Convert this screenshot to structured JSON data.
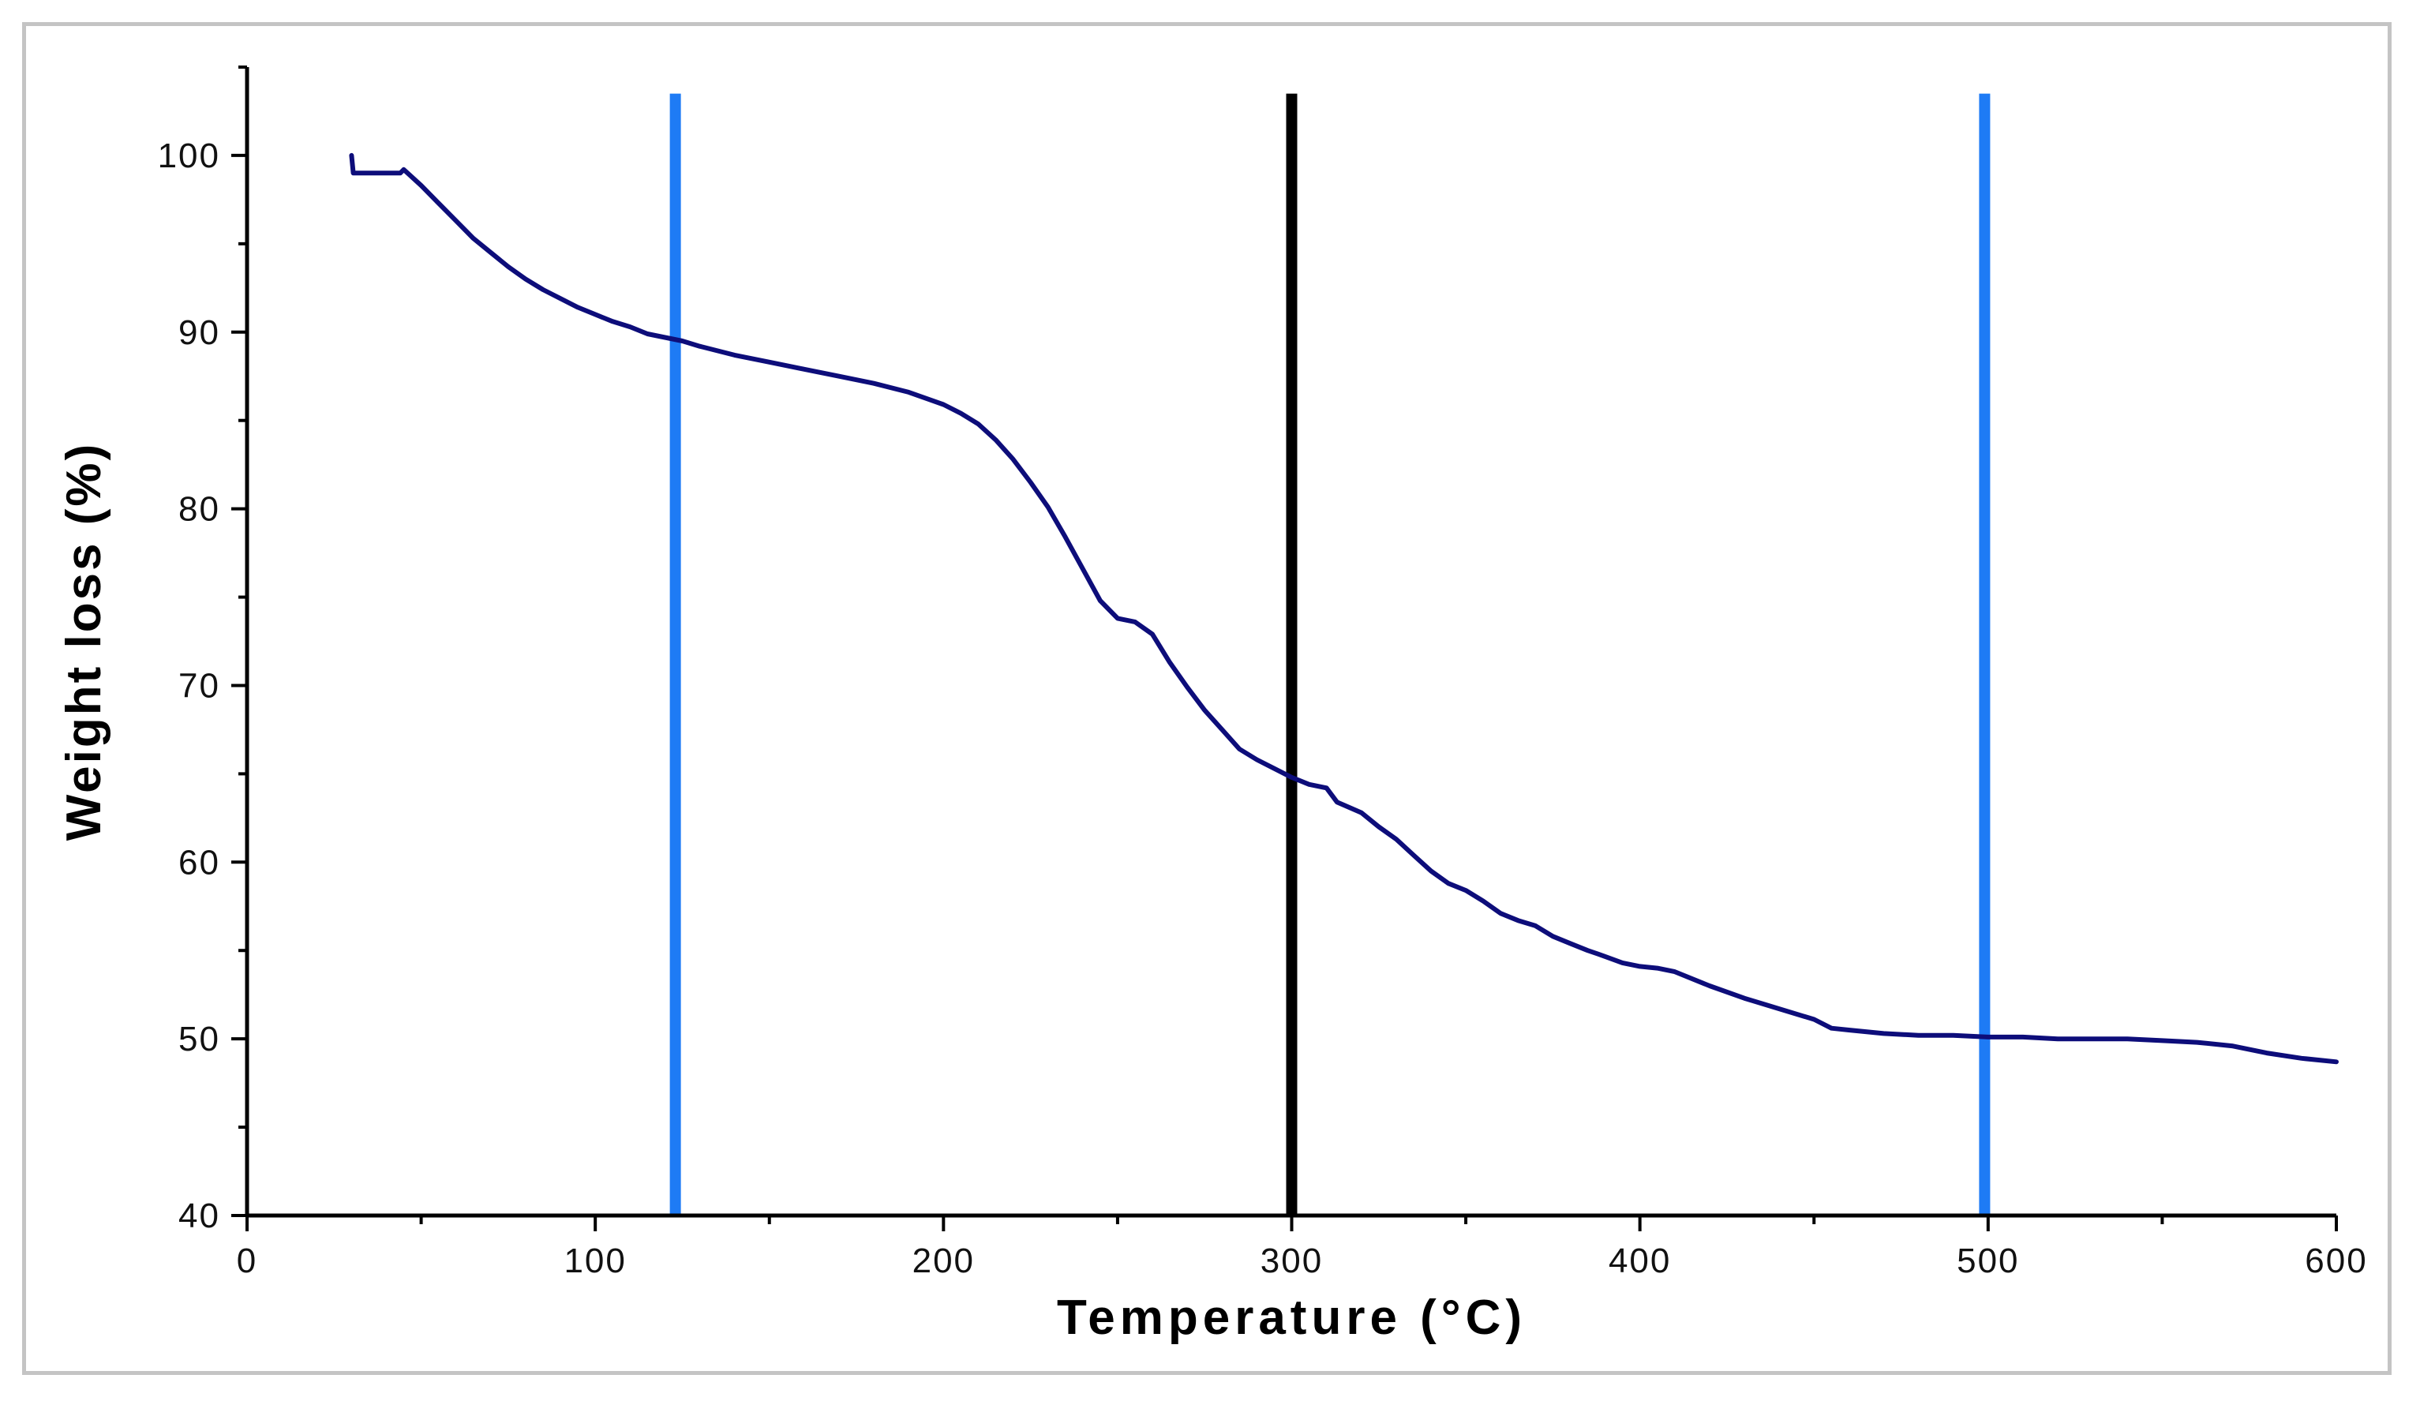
{
  "chart_data": {
    "type": "line",
    "title": "",
    "xlabel": "Temperature (°C)",
    "ylabel": "Weight loss (%)",
    "xlim": [
      0,
      600
    ],
    "ylim": [
      40,
      105
    ],
    "x_ticks": [
      0,
      100,
      200,
      300,
      400,
      500,
      600
    ],
    "y_ticks": [
      40,
      50,
      60,
      70,
      80,
      90,
      100
    ],
    "x_tick_labels": [
      "0",
      "100",
      "200",
      "300",
      "400",
      "500",
      "600"
    ],
    "y_tick_labels": [
      "40",
      "50",
      "60",
      "70",
      "80",
      "90",
      "100"
    ],
    "grid": false,
    "legend": "none",
    "series": [
      {
        "color": "#0d0d7a",
        "x": [
          30,
          30.5,
          31,
          35,
          40,
          44,
          45,
          50,
          55,
          60,
          65,
          70,
          75,
          80,
          85,
          90,
          95,
          100,
          105,
          110,
          115,
          120,
          125,
          130,
          140,
          150,
          160,
          170,
          180,
          190,
          200,
          205,
          210,
          215,
          220,
          225,
          230,
          235,
          240,
          245,
          250,
          255,
          260,
          265,
          270,
          275,
          280,
          285,
          290,
          295,
          300,
          305,
          310,
          313,
          320,
          325,
          330,
          335,
          340,
          345,
          350,
          355,
          360,
          365,
          370,
          375,
          380,
          385,
          388,
          395,
          400,
          405,
          410,
          420,
          430,
          440,
          450,
          455,
          460,
          470,
          480,
          490,
          500,
          510,
          520,
          530,
          540,
          550,
          560,
          570,
          580,
          590,
          600
        ],
        "y": [
          100,
          99,
          99,
          99,
          99,
          99,
          99.2,
          98.3,
          97.3,
          96.3,
          95.3,
          94.5,
          93.7,
          93,
          92.4,
          91.9,
          91.4,
          91,
          90.6,
          90.3,
          89.9,
          89.7,
          89.5,
          89.2,
          88.7,
          88.3,
          87.9,
          87.5,
          87.1,
          86.6,
          85.9,
          85.4,
          84.8,
          83.9,
          82.8,
          81.5,
          80.1,
          78.4,
          76.6,
          74.8,
          73.8,
          73.6,
          72.9,
          71.3,
          69.9,
          68.6,
          67.5,
          66.4,
          65.8,
          65.3,
          64.8,
          64.4,
          64.2,
          63.4,
          62.8,
          62,
          61.3,
          60.4,
          59.5,
          58.8,
          58.4,
          57.8,
          57.1,
          56.7,
          56.4,
          55.8,
          55.4,
          55,
          54.8,
          54.3,
          54.1,
          54,
          53.8,
          53,
          52.3,
          51.7,
          51.1,
          50.6,
          50.5,
          50.3,
          50.2,
          50.2,
          50.1,
          50.1,
          50.0,
          50.0,
          50.0,
          49.9,
          49.8,
          49.6,
          49.2,
          48.9,
          48.7
        ]
      }
    ],
    "vertical_lines": [
      {
        "x": 123,
        "color": "#1e7bf5"
      },
      {
        "x": 300,
        "color": "#000000"
      },
      {
        "x": 499,
        "color": "#1e7bf5"
      }
    ]
  }
}
